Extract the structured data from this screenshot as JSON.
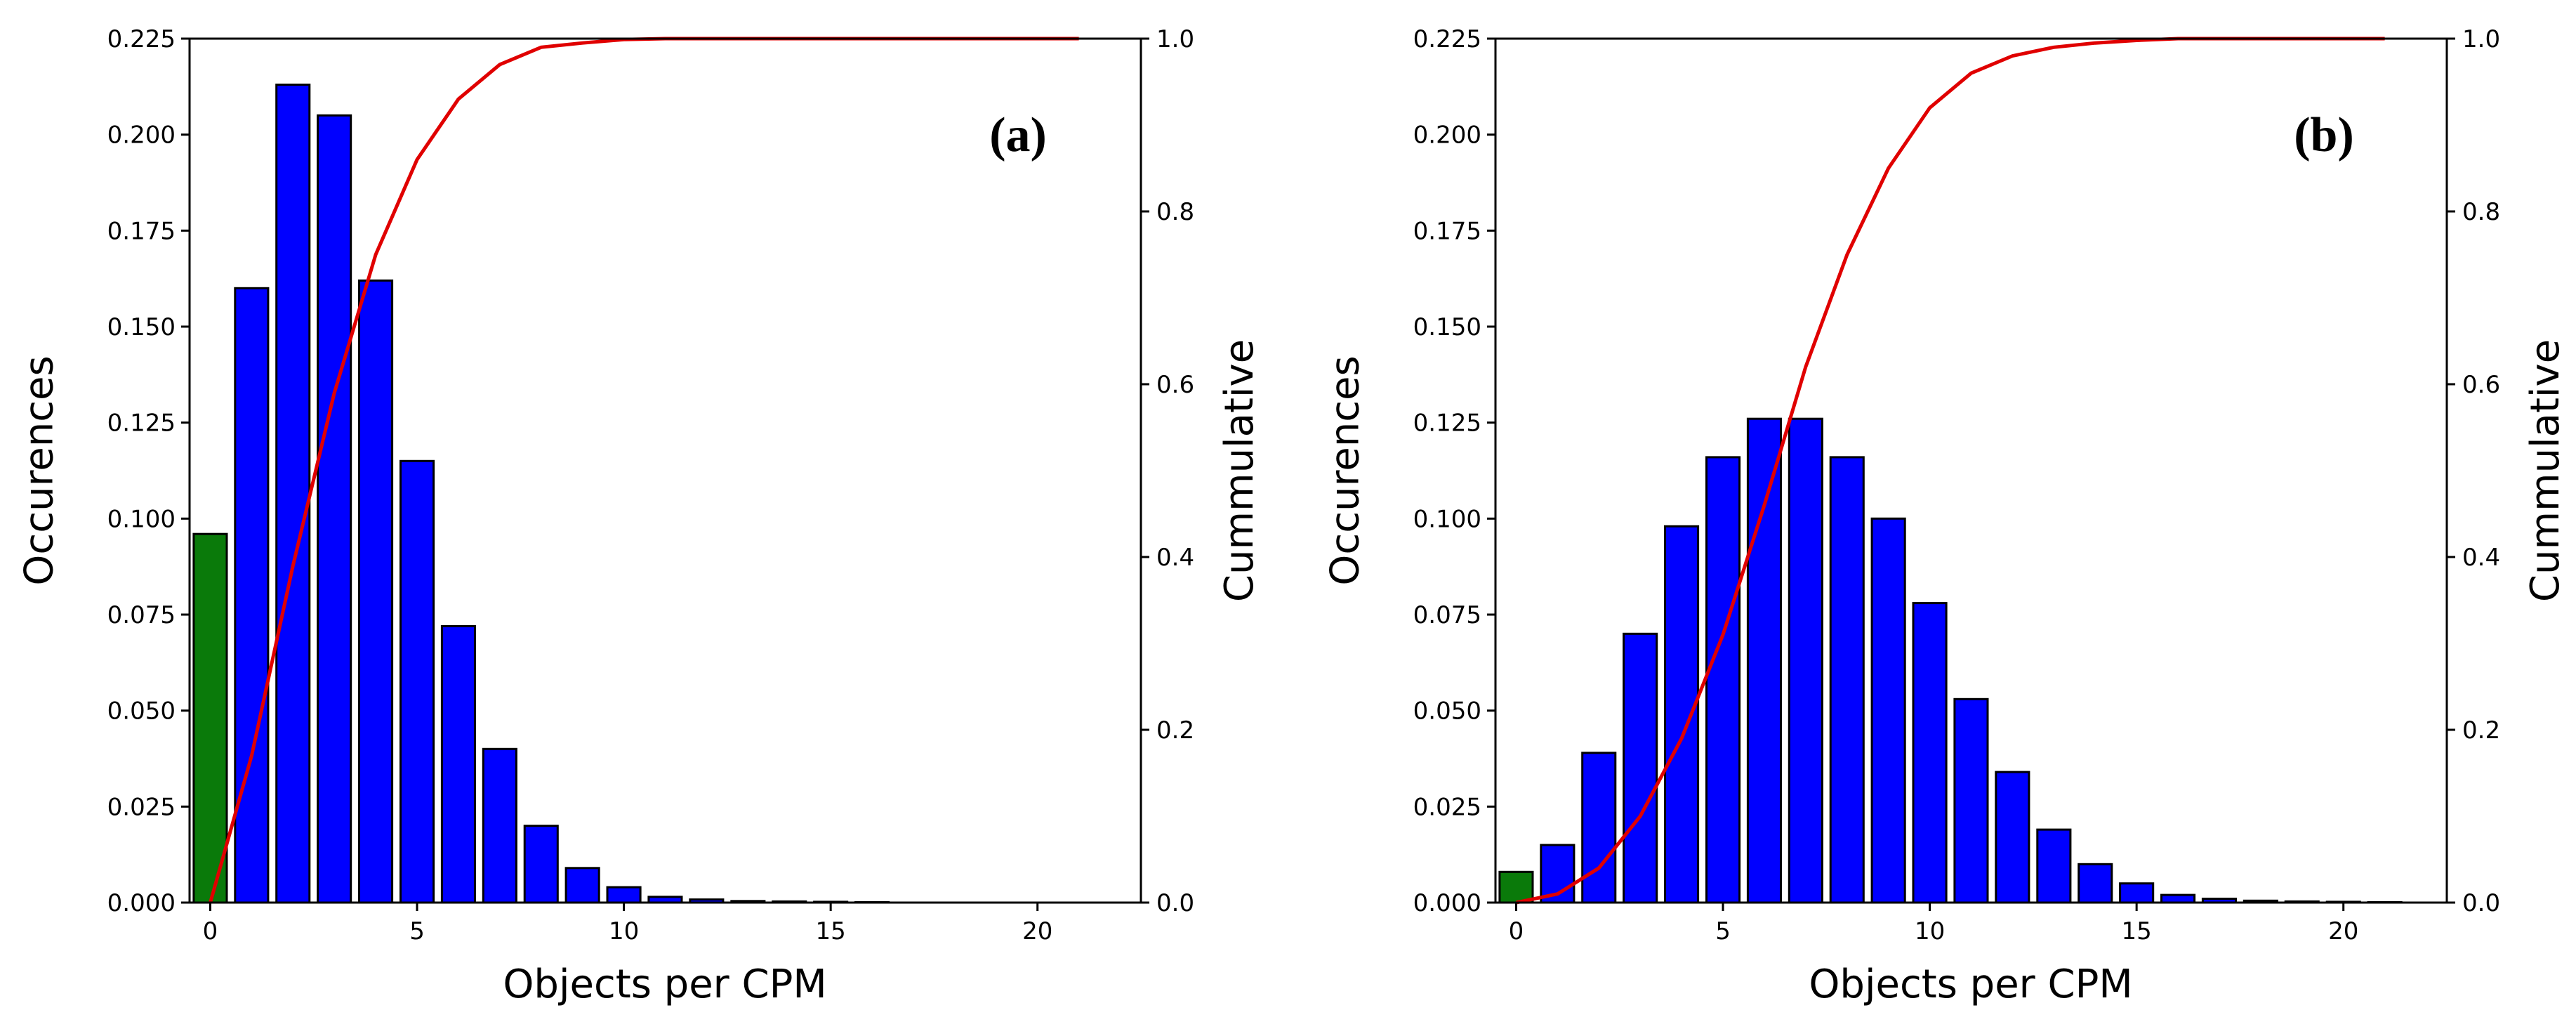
{
  "chart_data": [
    {
      "type": "bar",
      "panel_label": "(a)",
      "xlabel": "Objects per CPM",
      "ylabel": "Occurences",
      "y2label": "Cummulative",
      "xlim": [
        -0.5,
        22.5
      ],
      "ylim": [
        0,
        0.225
      ],
      "y2lim": [
        0,
        1.0
      ],
      "xticks": [
        "0",
        "5",
        "10",
        "15",
        "20"
      ],
      "yticks": [
        "0.000",
        "0.025",
        "0.050",
        "0.075",
        "0.100",
        "0.125",
        "0.150",
        "0.175",
        "0.200",
        "0.225"
      ],
      "y2ticks": [
        "0.0",
        "0.2",
        "0.4",
        "0.6",
        "0.8",
        "1.0"
      ],
      "colors": {
        "zero_bar": "#0a7a0a",
        "bars": "#0000ff",
        "cumulative": "#e00000"
      },
      "series": [
        {
          "name": "Occurences",
          "x": [
            0,
            1,
            2,
            3,
            4,
            5,
            6,
            7,
            8,
            9,
            10,
            11,
            12,
            13,
            14,
            15,
            16,
            17,
            18,
            19,
            20,
            21
          ],
          "values": [
            0.096,
            0.16,
            0.213,
            0.205,
            0.162,
            0.115,
            0.072,
            0.04,
            0.02,
            0.009,
            0.004,
            0.0015,
            0.0008,
            0.0004,
            0.0003,
            0.0002,
            0.0001,
            0,
            0,
            0,
            0,
            0
          ]
        },
        {
          "name": "Cummulative",
          "x": [
            0,
            1,
            2,
            3,
            4,
            5,
            6,
            7,
            8,
            9,
            10,
            11,
            12,
            13,
            14,
            15,
            16,
            17,
            18,
            19,
            20,
            21
          ],
          "values": [
            0.0,
            0.17,
            0.39,
            0.59,
            0.75,
            0.86,
            0.93,
            0.97,
            0.99,
            0.995,
            0.999,
            1.0,
            1.0,
            1.0,
            1.0,
            1.0,
            1.0,
            1.0,
            1.0,
            1.0,
            1.0,
            1.0
          ]
        }
      ]
    },
    {
      "type": "bar",
      "panel_label": "(b)",
      "xlabel": "Objects per CPM",
      "ylabel": "Occurences",
      "y2label": "Cummulative",
      "xlim": [
        -0.5,
        22.5
      ],
      "ylim": [
        0,
        0.225
      ],
      "y2lim": [
        0,
        1.0
      ],
      "xticks": [
        "0",
        "5",
        "10",
        "15",
        "20"
      ],
      "yticks": [
        "0.000",
        "0.025",
        "0.050",
        "0.075",
        "0.100",
        "0.125",
        "0.150",
        "0.175",
        "0.200",
        "0.225"
      ],
      "y2ticks": [
        "0.0",
        "0.2",
        "0.4",
        "0.6",
        "0.8",
        "1.0"
      ],
      "colors": {
        "zero_bar": "#0a7a0a",
        "bars": "#0000ff",
        "cumulative": "#e00000"
      },
      "series": [
        {
          "name": "Occurences",
          "x": [
            0,
            1,
            2,
            3,
            4,
            5,
            6,
            7,
            8,
            9,
            10,
            11,
            12,
            13,
            14,
            15,
            16,
            17,
            18,
            19,
            20,
            21
          ],
          "values": [
            0.008,
            0.015,
            0.039,
            0.07,
            0.098,
            0.116,
            0.126,
            0.126,
            0.116,
            0.1,
            0.078,
            0.053,
            0.034,
            0.019,
            0.01,
            0.005,
            0.002,
            0.001,
            0.0005,
            0.0003,
            0.0002,
            0.0001
          ]
        },
        {
          "name": "Cummulative",
          "x": [
            0,
            1,
            2,
            3,
            4,
            5,
            6,
            7,
            8,
            9,
            10,
            11,
            12,
            13,
            14,
            15,
            16,
            17,
            18,
            19,
            20,
            21
          ],
          "values": [
            0.0,
            0.01,
            0.04,
            0.1,
            0.19,
            0.31,
            0.46,
            0.62,
            0.75,
            0.85,
            0.92,
            0.96,
            0.98,
            0.99,
            0.995,
            0.998,
            1.0,
            1.0,
            1.0,
            1.0,
            1.0,
            1.0
          ]
        }
      ]
    }
  ]
}
